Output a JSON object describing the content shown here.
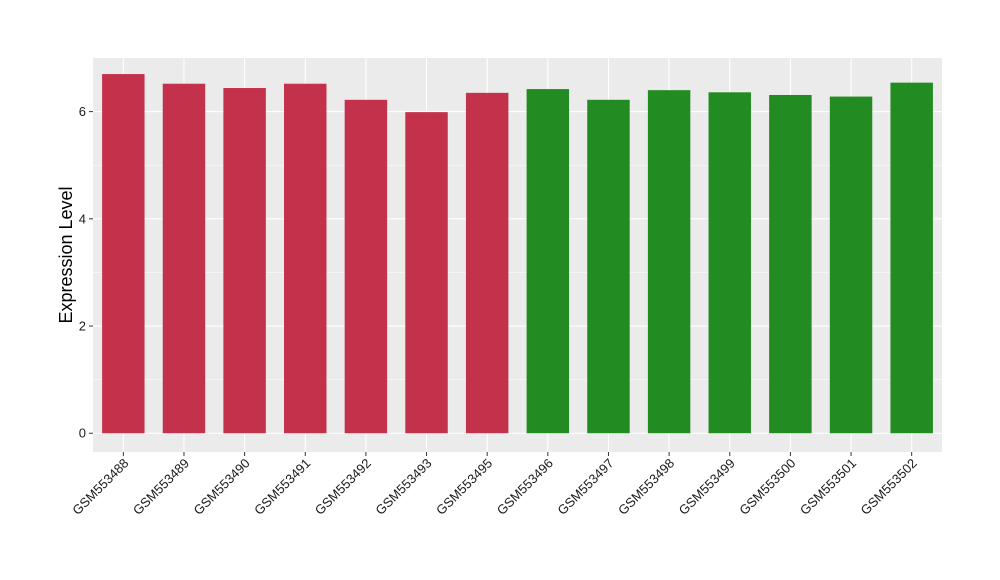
{
  "chart_data": {
    "type": "bar",
    "title": "",
    "xlabel": "",
    "ylabel": "Expression Level",
    "ylim": [
      -0.35,
      7.0
    ],
    "yticks": [
      0,
      2,
      4,
      6
    ],
    "grid": true,
    "legend": "none",
    "background_color": "#ebebeb",
    "grid_color": "#ffffff",
    "categories": [
      "GSM553488",
      "GSM553489",
      "GSM553490",
      "GSM553491",
      "GSM553492",
      "GSM553493",
      "GSM553495",
      "GSM553496",
      "GSM553497",
      "GSM553498",
      "GSM553499",
      "GSM553500",
      "GSM553501",
      "GSM553502"
    ],
    "values": [
      6.7,
      6.52,
      6.44,
      6.52,
      6.22,
      5.99,
      6.35,
      6.42,
      6.22,
      6.4,
      6.36,
      6.31,
      6.28,
      6.54
    ],
    "bar_colors": [
      "#c3324a",
      "#c3324a",
      "#c3324a",
      "#c3324a",
      "#c3324a",
      "#c3324a",
      "#c3324a",
      "#228b22",
      "#228b22",
      "#228b22",
      "#228b22",
      "#228b22",
      "#228b22",
      "#228b22"
    ]
  }
}
